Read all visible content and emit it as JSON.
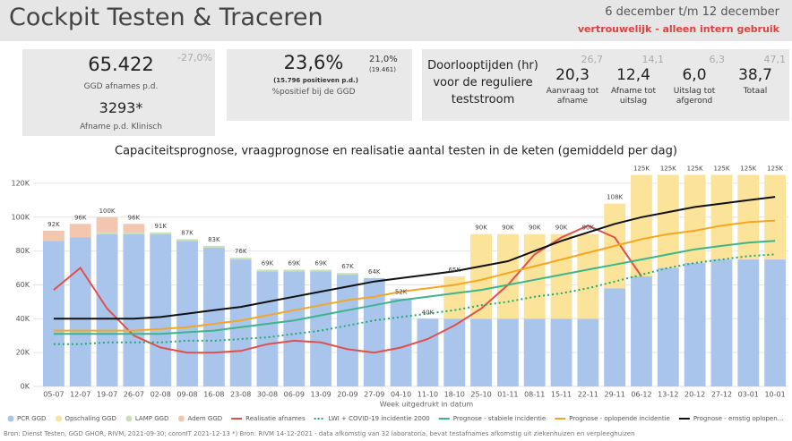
{
  "header": {
    "title": "Cockpit Testen & Traceren",
    "period": "6 december t/m 12 december",
    "confidential": "vertrouwelijk - alleen intern gebruik"
  },
  "kpis": {
    "afnames": {
      "value": "65.422",
      "change": "-27,0%",
      "label": "GGD afnames p.d.",
      "clinical_value": "3293*",
      "clinical_label": "Afname p.d. Klinisch"
    },
    "positief": {
      "value": "23,6%",
      "detail": "(15.796 positieven p.d.)",
      "label": "%positief bij de GGD",
      "previous": "21,0%",
      "previous_detail": "(19.461)"
    },
    "doorloop": {
      "title": "Doorlooptijden (hr) voor de reguliere teststroom",
      "items": [
        {
          "previous": "26,7",
          "value": "20,3",
          "label": "Aanvraag tot afname"
        },
        {
          "previous": "14,1",
          "value": "12,4",
          "label": "Afname tot uitslag"
        },
        {
          "previous": "6,3",
          "value": "6,0",
          "label": "Uitslag tot afgerond"
        },
        {
          "previous": "47,1",
          "value": "38,7",
          "label": "Totaal"
        }
      ]
    }
  },
  "chart_data": {
    "type": "combo",
    "title": "Capaciteitsprognose, vraagprognose en realisatie aantal testen in de keten (gemiddeld per dag)",
    "xlabel": "Week uitgedrukt in datum",
    "categories": [
      "05-07",
      "12-07",
      "19-07",
      "26-07",
      "02-08",
      "09-08",
      "16-08",
      "23-08",
      "30-08",
      "06-09",
      "13-09",
      "20-09",
      "27-09",
      "04-10",
      "11-10",
      "18-10",
      "25-10",
      "01-11",
      "08-11",
      "15-11",
      "22-11",
      "29-11",
      "06-12",
      "13-12",
      "20-12",
      "27-12",
      "03-01",
      "10-01"
    ],
    "ylim": [
      0,
      130000
    ],
    "yticks": [
      {
        "value": 0,
        "label": "0K"
      },
      {
        "value": 20000,
        "label": "20K"
      },
      {
        "value": 40000,
        "label": "40K"
      },
      {
        "value": 60000,
        "label": "60K"
      },
      {
        "value": 80000,
        "label": "80K"
      },
      {
        "value": 100000,
        "label": "100K"
      },
      {
        "value": 120000,
        "label": "120K"
      }
    ],
    "grid": true,
    "series": [
      {
        "name": "PCR GGD",
        "type": "bar",
        "color": "#aac5ec",
        "values": [
          86000,
          88000,
          90000,
          90000,
          90000,
          86000,
          82000,
          75000,
          68000,
          68000,
          68000,
          66000,
          64000,
          52000,
          40000,
          40000,
          40000,
          40000,
          40000,
          40000,
          40000,
          58000,
          65000,
          70000,
          73000,
          75000,
          75000,
          75000
        ]
      },
      {
        "name": "Opschaling GGD",
        "type": "bar",
        "color": "#fbe39a",
        "values": [
          0,
          0,
          0,
          0,
          0,
          0,
          0,
          0,
          0,
          0,
          0,
          0,
          0,
          0,
          0,
          25000,
          50000,
          50000,
          50000,
          50000,
          50000,
          50000,
          60000,
          55000,
          52000,
          50000,
          50000,
          50000
        ]
      },
      {
        "name": "LAMP GGD",
        "type": "bar",
        "color": "#c8e0b2",
        "values": [
          0,
          0,
          1000,
          1000,
          1000,
          1000,
          1000,
          1000,
          1000,
          1000,
          1000,
          1000,
          0,
          0,
          0,
          0,
          0,
          0,
          0,
          0,
          0,
          0,
          0,
          0,
          0,
          0,
          0,
          0
        ]
      },
      {
        "name": "Adem GGD",
        "type": "bar",
        "color": "#f3c6b0",
        "values": [
          6000,
          8000,
          9000,
          5000,
          0,
          0,
          0,
          0,
          0,
          0,
          0,
          0,
          0,
          0,
          0,
          0,
          0,
          0,
          0,
          0,
          0,
          0,
          0,
          0,
          0,
          0,
          0,
          0
        ]
      },
      {
        "name": "Realisatie afnames",
        "type": "line",
        "color": "#e0504b",
        "values": [
          57000,
          70000,
          46000,
          30000,
          23000,
          20000,
          20000,
          21000,
          25000,
          27000,
          26000,
          22000,
          20000,
          23000,
          28000,
          36000,
          46000,
          60000,
          78000,
          88000,
          95000,
          88000,
          65000,
          null,
          null,
          null,
          null,
          null
        ]
      },
      {
        "name": "LWI + COVID-19 incidentie 2000",
        "type": "line",
        "style": "dotted",
        "color": "#23a86e",
        "values": [
          25000,
          25000,
          26000,
          26000,
          26000,
          27000,
          27000,
          28000,
          29000,
          31000,
          33000,
          36000,
          39000,
          41000,
          43000,
          45000,
          48000,
          50000,
          53000,
          55000,
          58000,
          62000,
          66000,
          70000,
          73000,
          75000,
          77000,
          78000
        ]
      },
      {
        "name": "Prognose - stabiele incidentie",
        "type": "line",
        "color": "#3bb58a",
        "values": [
          31000,
          31000,
          31000,
          31000,
          31000,
          32000,
          33000,
          35000,
          37000,
          39000,
          42000,
          45000,
          48000,
          51000,
          53000,
          55000,
          57000,
          60000,
          63000,
          66000,
          69000,
          72000,
          75000,
          78000,
          81000,
          83000,
          85000,
          86000
        ]
      },
      {
        "name": "Prognose - oplopende incidentie",
        "type": "line",
        "color": "#f5a623",
        "values": [
          33000,
          33000,
          33000,
          33000,
          34000,
          35000,
          37000,
          39000,
          42000,
          45000,
          48000,
          51000,
          53000,
          56000,
          58000,
          60000,
          63000,
          67000,
          71000,
          75000,
          79000,
          83000,
          87000,
          90000,
          92000,
          95000,
          97000,
          98000
        ]
      },
      {
        "name": "Prognose - ernstig oplopen...",
        "type": "line",
        "color": "#111111",
        "values": [
          40000,
          40000,
          40000,
          40000,
          41000,
          43000,
          45000,
          47000,
          50000,
          53000,
          56000,
          59000,
          62000,
          64000,
          66000,
          68000,
          71000,
          74000,
          80000,
          86000,
          91000,
          96000,
          100000,
          103000,
          106000,
          108000,
          110000,
          112000
        ]
      }
    ],
    "totals": {
      "values": [
        92000,
        96000,
        100000,
        96000,
        91000,
        87000,
        83000,
        76000,
        69000,
        69000,
        69000,
        67000,
        64000,
        52000,
        40000,
        65000,
        90000,
        90000,
        90000,
        90000,
        90000,
        108000,
        125000,
        125000,
        125000,
        125000,
        125000,
        125000
      ],
      "value_labels": [
        "92K",
        "96K",
        "100K",
        "96K",
        "91K",
        "87K",
        "83K",
        "76K",
        "69K",
        "69K",
        "69K",
        "67K",
        "64K",
        "52K",
        "40K",
        "65K",
        "90K",
        "90K",
        "90K",
        "90K",
        "90K",
        "108K",
        "125K",
        "125K",
        "125K",
        "125K",
        "125K",
        "125K"
      ]
    },
    "source": "Bron: Dienst Testen, GGD GHOR, RIVM, 2021-09-30; coronIT 2021-12-13    *) Bron: RIVM 14-12-2021 - data afkomstig van 32 laboratoria, bevat testafnames afkomstig uit ziekenhuizen en verpleeghuizen"
  }
}
